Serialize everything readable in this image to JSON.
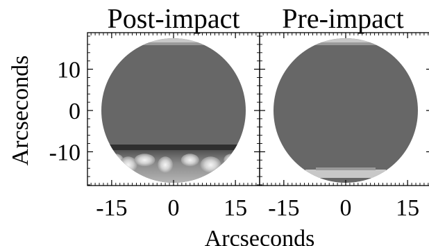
{
  "chart_data": [
    {
      "type": "heatmap",
      "title": "Post-impact",
      "xlabel": "Arcseconds",
      "ylabel": "Arcseconds",
      "xlim": [
        -21,
        21
      ],
      "ylim": [
        -20,
        20
      ],
      "xticks": [
        {
          "value": -15,
          "label": "-15"
        },
        {
          "value": 0,
          "label": "0"
        },
        {
          "value": 15,
          "label": "15"
        }
      ],
      "yticks": [
        {
          "value": 10,
          "label": "10"
        },
        {
          "value": 0,
          "label": "0"
        },
        {
          "value": -10,
          "label": "-10"
        }
      ],
      "disk_radius": 17.5,
      "features": [
        {
          "kind": "bright_band",
          "y_from": 17.5,
          "y_to": 16.8,
          "x_from": -9,
          "x_to": 9
        },
        {
          "kind": "impact_spots",
          "y_from": -17.5,
          "y_to": -9,
          "spots_x": [
            -14,
            -11,
            -7,
            -2,
            4,
            9,
            14
          ]
        }
      ]
    },
    {
      "type": "heatmap",
      "title": "Pre-impact",
      "xlabel": "Arcseconds",
      "ylabel": "",
      "xlim": [
        -21,
        21
      ],
      "ylim": [
        -20,
        20
      ],
      "xticks": [
        {
          "value": -15,
          "label": "-15"
        },
        {
          "value": 0,
          "label": "0"
        },
        {
          "value": 15,
          "label": "15"
        }
      ],
      "yticks": [
        {
          "value": 10,
          "label": ""
        },
        {
          "value": 0,
          "label": ""
        },
        {
          "value": -10,
          "label": ""
        }
      ],
      "disk_radius": 17.5,
      "features": [
        {
          "kind": "bright_band",
          "y_from": 17.5,
          "y_to": 16.8,
          "x_from": -9,
          "x_to": 9
        },
        {
          "kind": "bright_band",
          "y_from": -16.3,
          "y_to": -17.5,
          "x_from": -9,
          "x_to": 9
        }
      ]
    }
  ],
  "colors": {
    "disk_gray": "#676767",
    "band_light": "#c8c8c8",
    "axis": "#000000"
  }
}
